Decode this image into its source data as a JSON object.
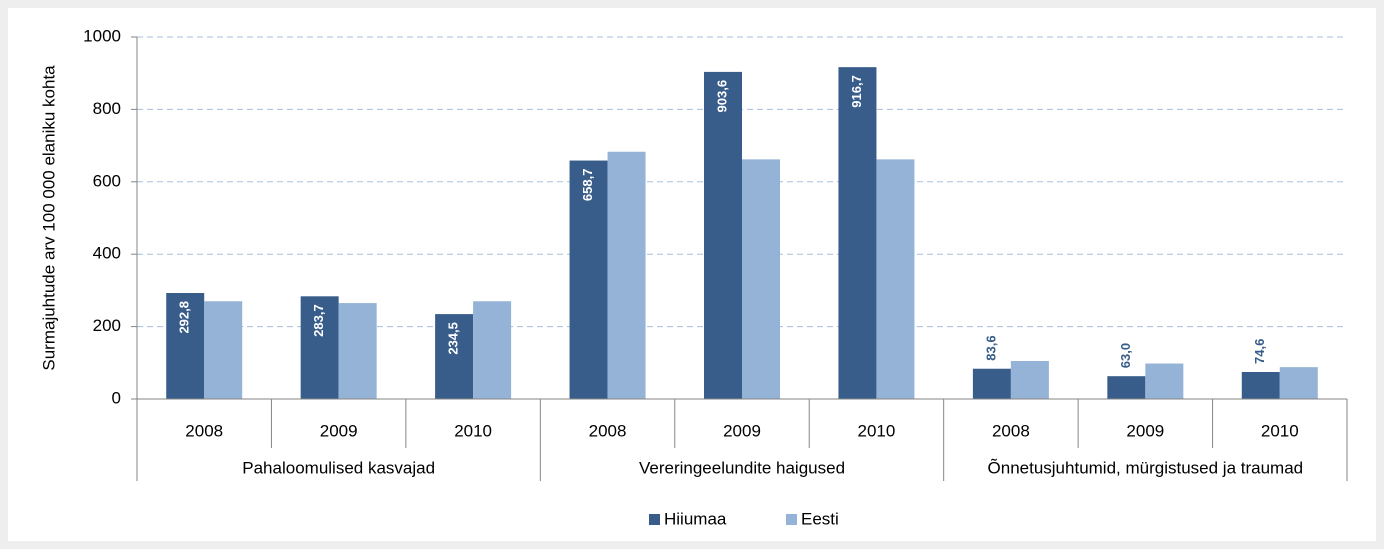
{
  "chart_data": {
    "type": "bar",
    "y_axis_label": "Surmajuhtude arv 100 000 elaniku kohta",
    "categories": [
      "2008",
      "2009",
      "2010",
      "2008",
      "2009",
      "2010",
      "2008",
      "2009",
      "2010"
    ],
    "groups": [
      "Pahaloomulised kasvajad",
      "Vereringeelundite haigused",
      "Õnnetusjuhtumid, mürgistused ja traumad"
    ],
    "series": [
      {
        "name": "Hiiumaa",
        "color": "#385d8a",
        "values": [
          292.8,
          283.7,
          234.5,
          658.7,
          903.6,
          916.7,
          83.6,
          63.0,
          74.6
        ],
        "value_labels": [
          "292,8",
          "283,7",
          "234,5",
          "658,7",
          "903,6",
          "916,7",
          "83,6",
          "63,0",
          "74,6"
        ]
      },
      {
        "name": "Eesti",
        "color": "#95b3d7",
        "values": [
          270,
          265,
          270,
          683,
          662,
          662,
          105,
          98,
          88
        ]
      }
    ],
    "ylim": [
      0,
      1000
    ],
    "yticks": [
      0,
      200,
      400,
      600,
      800,
      1000
    ],
    "grid": true
  }
}
